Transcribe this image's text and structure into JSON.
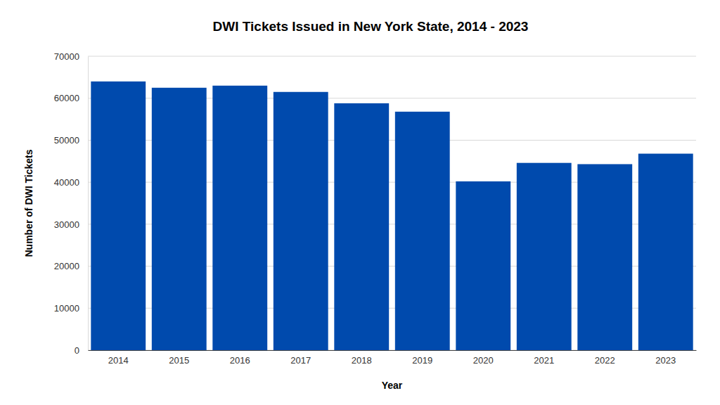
{
  "chart_data": {
    "type": "bar",
    "title": "DWI Tickets Issued in New York State, 2014 - 2023",
    "x_label": "Year",
    "y_label": "Number of DWI Tickets",
    "categories": [
      "2014",
      "2015",
      "2016",
      "2017",
      "2018",
      "2019",
      "2020",
      "2021",
      "2022",
      "2023"
    ],
    "values": [
      64000,
      62500,
      63000,
      61500,
      58800,
      56800,
      40200,
      44600,
      44300,
      46800
    ],
    "color": "#004aad",
    "ylim": [
      0,
      70000
    ],
    "yticks": [
      0,
      10000,
      20000,
      30000,
      40000,
      50000,
      60000,
      70000
    ],
    "grid": true
  }
}
